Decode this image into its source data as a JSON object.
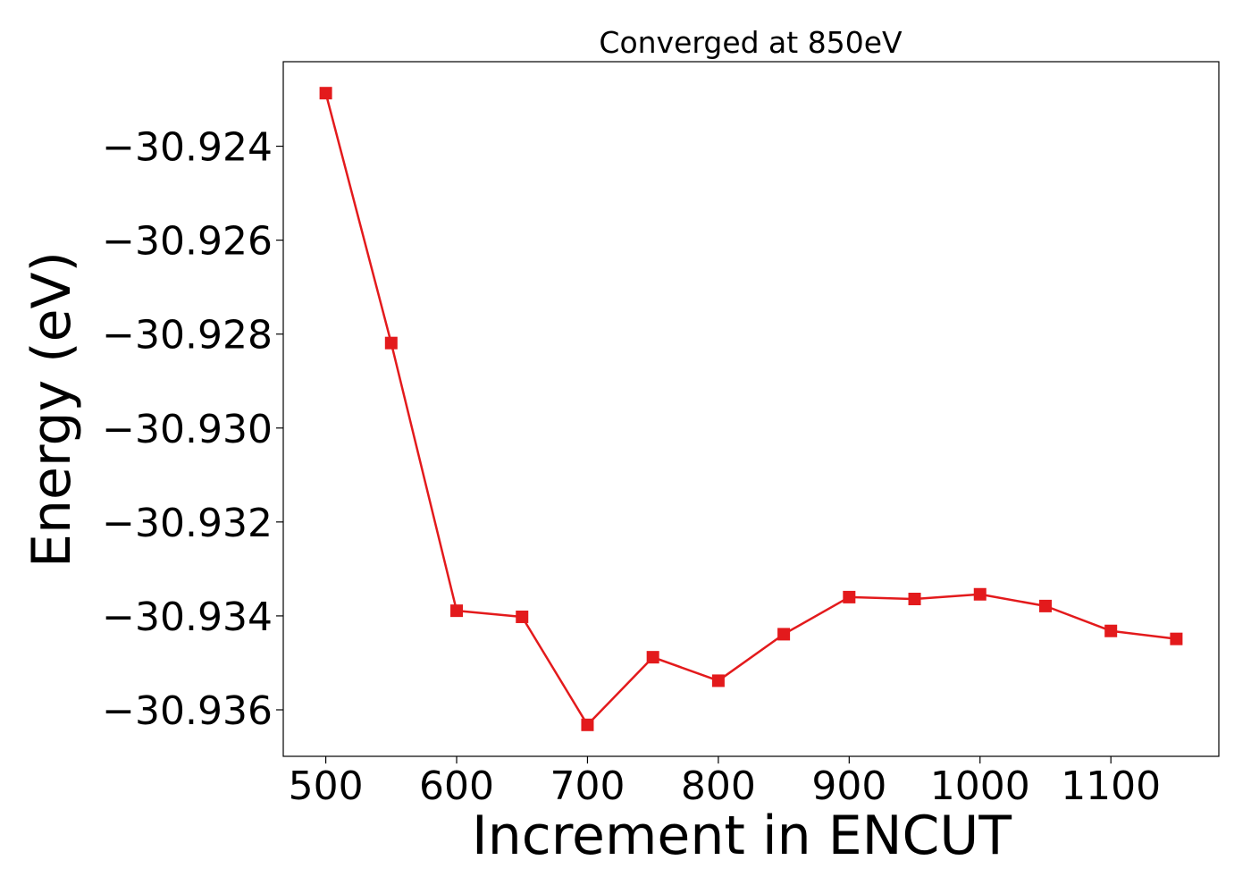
{
  "chart_data": {
    "type": "line",
    "title": "Converged at 850eV",
    "xlabel": "Increment in ENCUT",
    "ylabel": "Energy (eV)",
    "x": [
      500,
      550,
      600,
      650,
      700,
      750,
      800,
      850,
      900,
      950,
      1000,
      1050,
      1100,
      1150
    ],
    "series": [
      {
        "values": [
          -30.92287,
          -30.92819,
          -30.93389,
          -30.93402,
          -30.93632,
          -30.93488,
          -30.93538,
          -30.93439,
          -30.9336,
          -30.93364,
          -30.93354,
          -30.93379,
          -30.93432,
          -30.93449
        ],
        "color": "#e31a1c",
        "marker": "square"
      }
    ],
    "xticks": [
      500,
      600,
      700,
      800,
      900,
      1000,
      1100
    ],
    "xtick_labels": [
      "500",
      "600",
      "700",
      "800",
      "900",
      "1000",
      "1100"
    ],
    "yticks": [
      -30.924,
      -30.926,
      -30.928,
      -30.93,
      -30.932,
      -30.934,
      -30.936
    ],
    "ytick_labels": [
      "−30.924",
      "−30.926",
      "−30.928",
      "−30.930",
      "−30.932",
      "−30.934",
      "−30.936"
    ],
    "xlim": [
      467.5,
      1182.5
    ],
    "ylim": [
      -30.93699,
      -30.9222
    ],
    "grid": false
  }
}
